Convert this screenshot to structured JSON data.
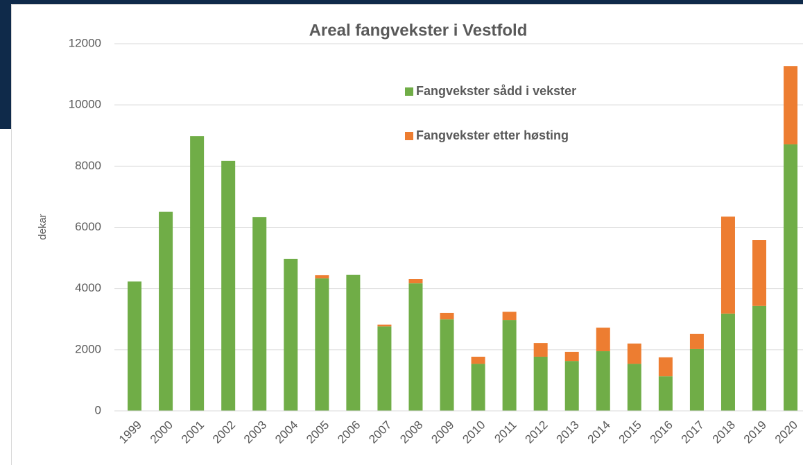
{
  "chart_data": {
    "type": "stacked_bar",
    "title": "Areal fangvekster i Vestfold",
    "ylabel": "dekar",
    "categories": [
      "1999",
      "2000",
      "2001",
      "2002",
      "2003",
      "2004",
      "2005",
      "2006",
      "2007",
      "2008",
      "2009",
      "2010",
      "2011",
      "2012",
      "2013",
      "2014",
      "2015",
      "2016",
      "2017",
      "2018",
      "2019",
      "2020"
    ],
    "series": [
      {
        "name": "Fangvekster sådd i vekster",
        "color": "#70ad47",
        "values": [
          4230,
          6510,
          8980,
          8170,
          6330,
          4970,
          4330,
          4450,
          2760,
          4170,
          2990,
          1540,
          2970,
          1770,
          1630,
          1950,
          1540,
          1130,
          2020,
          3180,
          3430,
          8710
        ]
      },
      {
        "name": "Fangvekster etter høsting",
        "color": "#ed7d31",
        "values": [
          0,
          0,
          0,
          0,
          0,
          0,
          110,
          0,
          60,
          140,
          210,
          230,
          270,
          450,
          300,
          770,
          660,
          620,
          500,
          3170,
          2150,
          2560
        ]
      }
    ],
    "ylim": [
      0,
      12000
    ],
    "yticks": [
      0,
      2000,
      4000,
      6000,
      8000,
      10000,
      12000
    ],
    "grid": true
  }
}
